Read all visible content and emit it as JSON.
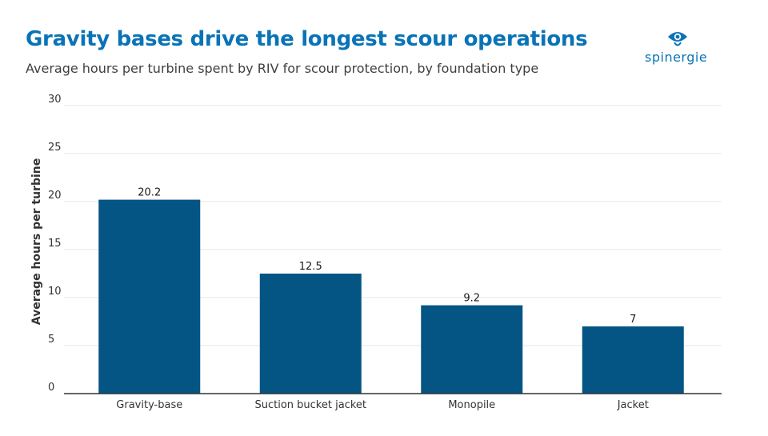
{
  "header": {
    "title": "Gravity bases drive the longest scour operations",
    "subtitle": "Average hours per turbine spent by RIV for scour protection, by foundation type"
  },
  "logo": {
    "text": "spinergie",
    "icon": "eye-logo-icon",
    "color": "#0a73b7"
  },
  "colors": {
    "title": "#0a73b7",
    "bar": "#055584",
    "grid": "#e6e6e6",
    "axis": "#333333"
  },
  "chart_data": {
    "type": "bar",
    "categories": [
      "Gravity-base",
      "Suction bucket jacket",
      "Monopile",
      "Jacket"
    ],
    "values": [
      20.2,
      12.5,
      9.2,
      7
    ],
    "value_labels": [
      "20.2",
      "12.5",
      "9.2",
      "7"
    ],
    "ylabel": "Average hours per turbine",
    "xlabel": "",
    "ylim": [
      0,
      30
    ],
    "yticks": [
      0,
      5,
      10,
      15,
      20,
      25,
      30
    ],
    "grid": true,
    "legend": "none"
  }
}
